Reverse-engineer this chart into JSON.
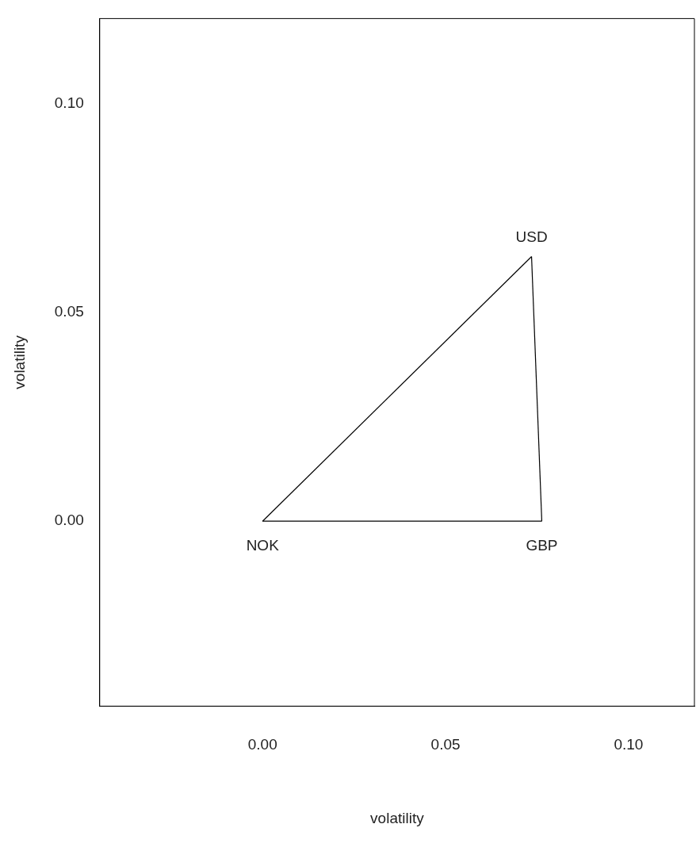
{
  "chart_data": {
    "type": "line",
    "xlabel": "volatility",
    "ylabel": "volatility",
    "series": [
      {
        "color": "#000000",
        "x": [
          0,
          0.0763
        ],
        "values": [
          0,
          0
        ]
      },
      {
        "color": "#000000",
        "x": [
          0.0735,
          0.0763
        ],
        "values": [
          0.0634,
          0
        ]
      },
      {
        "color": "#000000",
        "x": [
          0,
          0.0735
        ],
        "values": [
          0,
          0.0634
        ]
      }
    ],
    "annotations": [
      {
        "text": "NOK",
        "x": 0,
        "y": 0
      },
      {
        "text": "GBP",
        "x": 0.0763,
        "y": 0
      },
      {
        "text": "USD",
        "x": 0.0735,
        "y": 0.0634
      }
    ],
    "xlim": [
      -0.0445,
      0.118
    ],
    "ylim": [
      -0.0443,
      0.1204
    ],
    "xticks": [
      {
        "value": 0,
        "label": "0.00"
      },
      {
        "value": 0.05,
        "label": "0.05"
      },
      {
        "value": 0.1,
        "label": "0.10"
      }
    ],
    "yticks": [
      {
        "value": 0,
        "label": "0.00"
      },
      {
        "value": 0.05,
        "label": "0.05"
      },
      {
        "value": 0.1,
        "label": "0.10"
      }
    ],
    "grid": false,
    "legend": false,
    "marker": "none",
    "line_style": "solid"
  }
}
